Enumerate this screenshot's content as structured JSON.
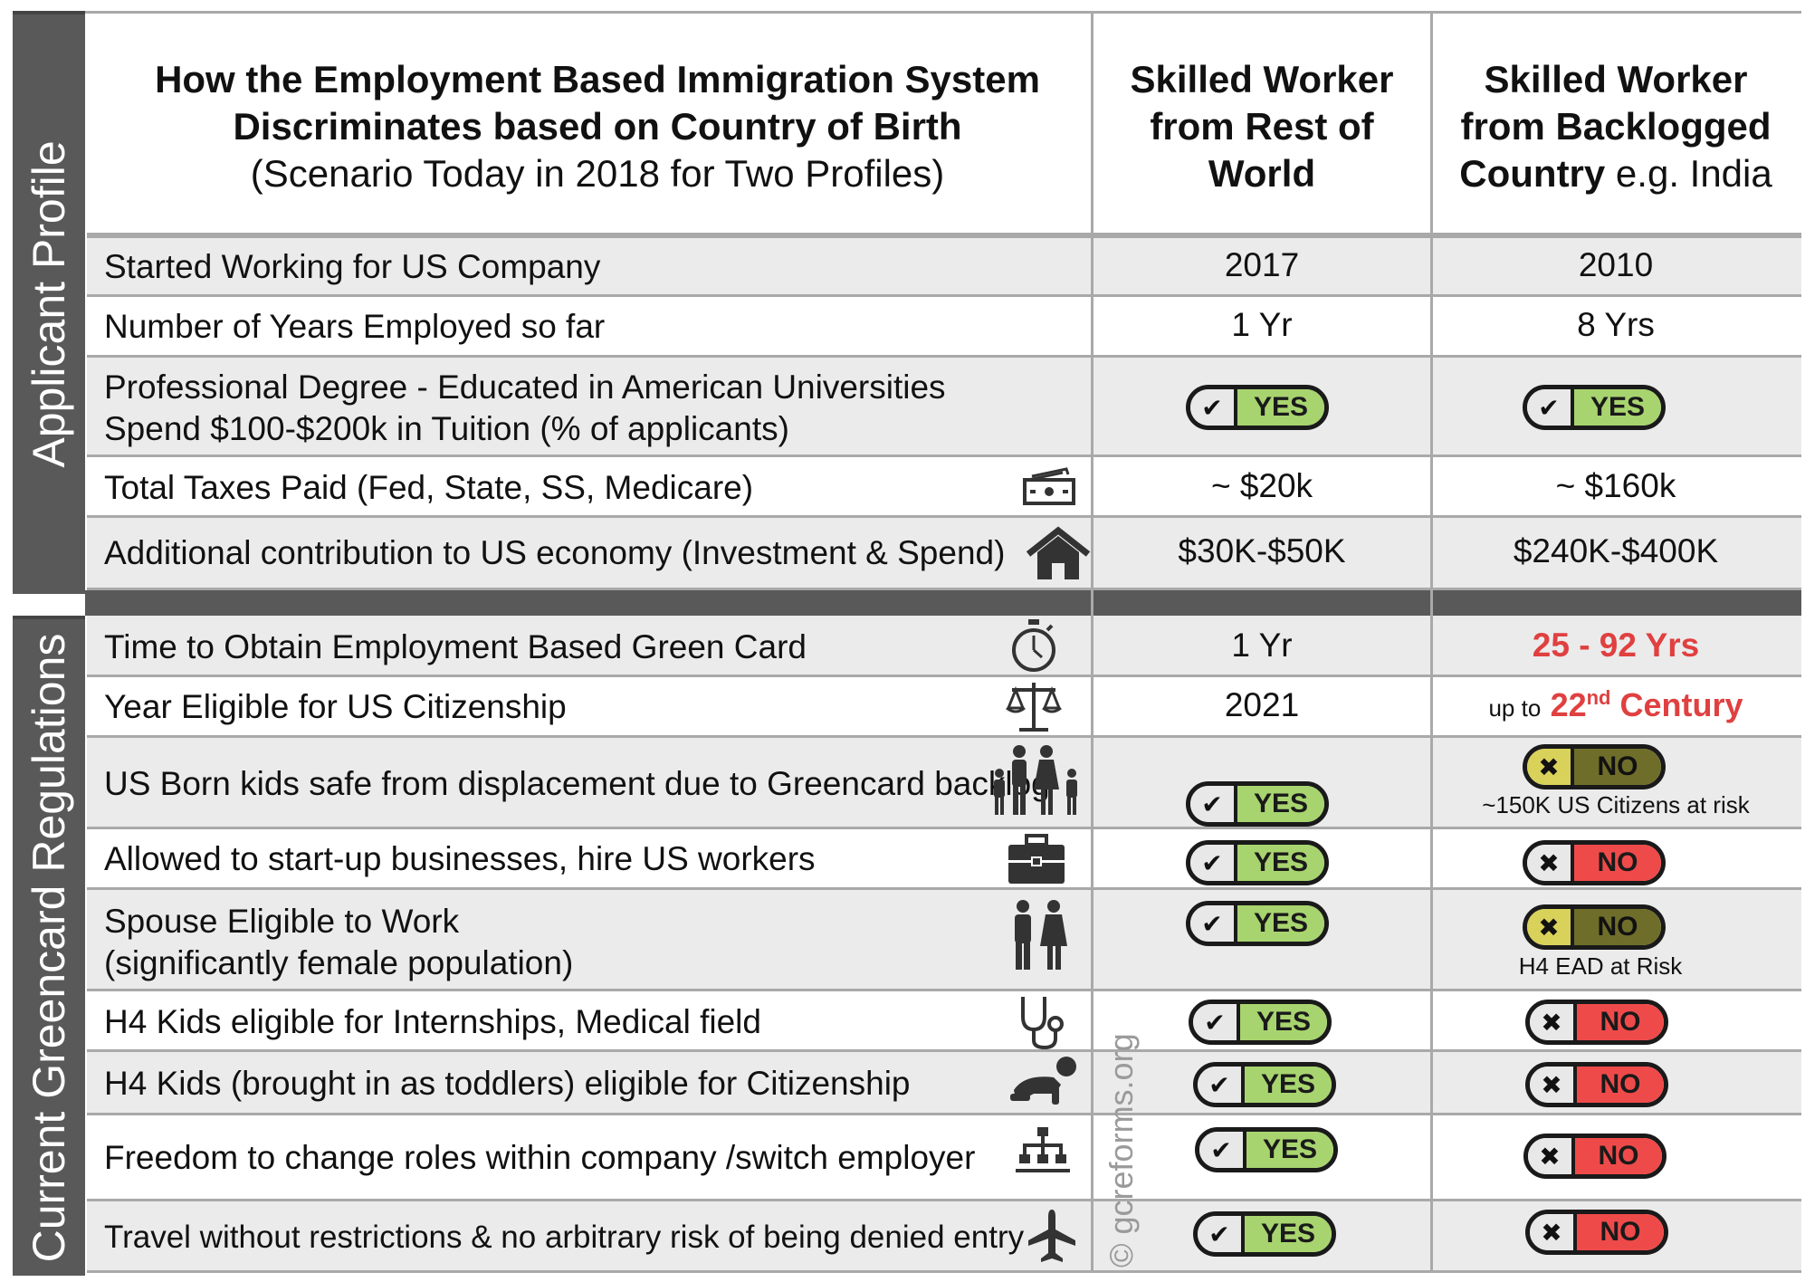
{
  "header": {
    "title_line1": "How the Employment Based Immigration System",
    "title_line2": "Discriminates based on Country of Birth",
    "subtitle": "(Scenario Today in 2018 for Two Profiles)",
    "col2_line1": "Skilled Worker",
    "col2_line2": "from Rest of",
    "col2_line3": "World",
    "col3_line1": "Skilled Worker",
    "col3_line2": "from Backlogged",
    "col3_line3_bold": "Country",
    "col3_line3_normal": " e.g. India"
  },
  "sections": {
    "applicant_profile": "Applicant Profile",
    "regulations": "Current Greencard Regulations"
  },
  "rows": [
    {
      "label": "Started Working for US Company",
      "rest": "2017",
      "backlog": "2010"
    },
    {
      "label": "Number of Years Employed so far",
      "rest": "1 Yr",
      "backlog": "8 Yrs"
    },
    {
      "label_line1": "Professional Degree - Educated in American Universities",
      "label_line2": "Spend $100-$200k in Tuition (% of applicants)",
      "rest": "YES",
      "backlog": "YES"
    },
    {
      "label": "Total Taxes Paid (Fed, State, SS, Medicare)",
      "rest": "~ $20k",
      "backlog": "~ $160k",
      "icon": "money-icon"
    },
    {
      "label": "Additional contribution to US economy (Investment & Spend)",
      "rest": "$30K-$50K",
      "backlog": "$240K-$400K",
      "icon": "house-icon"
    },
    {
      "label": "Time to Obtain Employment Based Green Card",
      "rest": "1 Yr",
      "backlog": "25 - 92 Yrs",
      "icon": "stopwatch-icon"
    },
    {
      "label": "Year Eligible for US Citizenship",
      "rest": "2021",
      "backlog_prefix": "up to",
      "backlog_num": "22",
      "backlog_sup": "nd",
      "backlog_suffix": "Century",
      "icon": "scales-icon"
    },
    {
      "label": "US Born kids safe from displacement due to Greencard backlog",
      "rest": "YES",
      "backlog": "NO",
      "backlog_note": "~150K US Citizens at risk",
      "icon": "family-icon"
    },
    {
      "label": "Allowed to start-up businesses, hire US workers",
      "rest": "YES",
      "backlog": "NO",
      "icon": "briefcase-icon"
    },
    {
      "label_line1": "Spouse Eligible to Work",
      "label_line2": "(significantly female population)",
      "rest": "YES",
      "backlog": "NO",
      "backlog_note": "H4 EAD at Risk",
      "icon": "couple-icon"
    },
    {
      "label": "H4 Kids eligible for Internships, Medical field",
      "rest": "YES",
      "backlog": "NO",
      "icon": "stethoscope-icon"
    },
    {
      "label": "H4 Kids (brought in as toddlers) eligible for Citizenship",
      "rest": "YES",
      "backlog": "NO",
      "icon": "crawling-baby-icon"
    },
    {
      "label": "Freedom to change roles within company /switch employer",
      "rest": "YES",
      "backlog": "NO",
      "icon": "org-chart-icon"
    },
    {
      "label": "Travel without restrictions & no arbitrary risk of being denied entry",
      "rest": "YES",
      "backlog": "NO",
      "icon": "airplane-icon"
    }
  ],
  "pill_glyphs": {
    "check": "✔",
    "cross": "✖"
  },
  "watermark": "© gcreforms.org",
  "colors": {
    "sidebar": "#595959",
    "yes": "#a8d46f",
    "no": "#ef4a4a",
    "warn": "#d9d25a",
    "highlight_red": "#e04040"
  }
}
